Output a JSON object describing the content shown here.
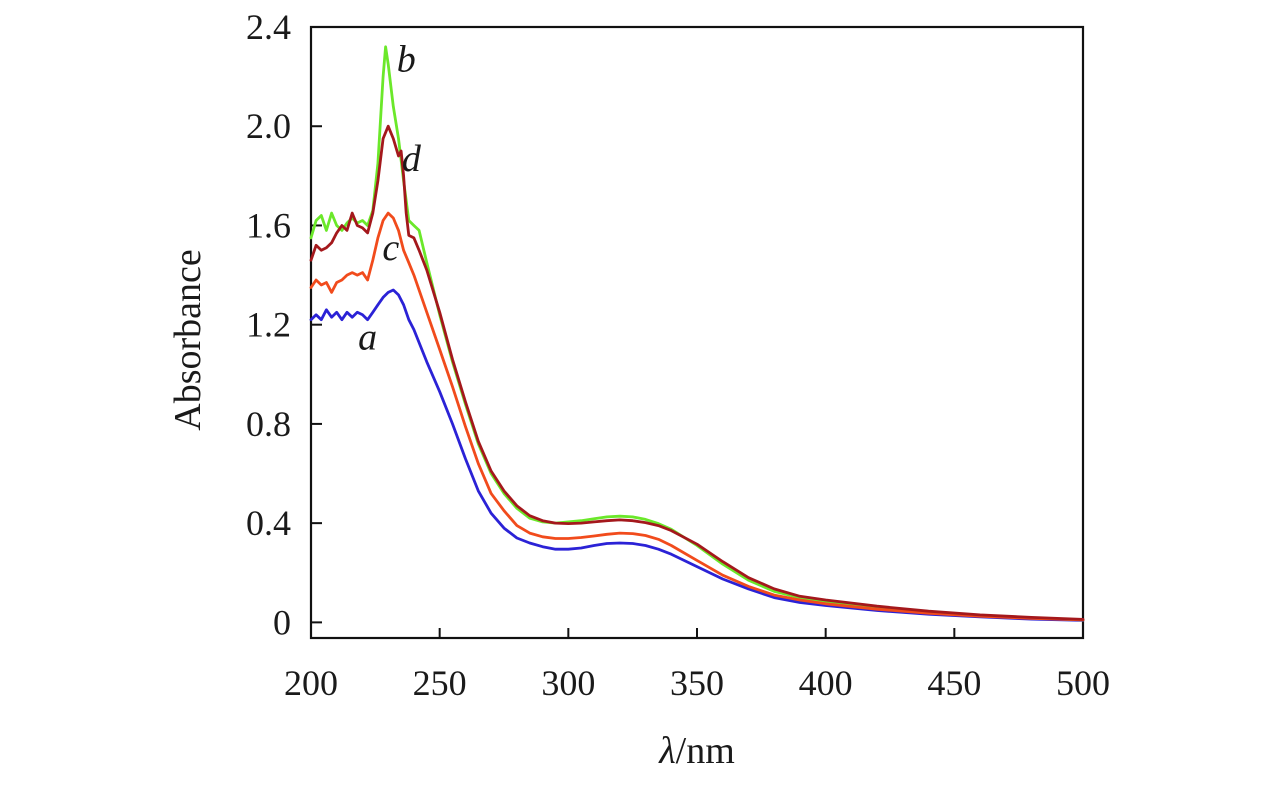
{
  "chart_data": {
    "type": "line",
    "title": "",
    "xlabel_symbol": "λ",
    "xlabel_unit": "/nm",
    "ylabel": "Absorbance",
    "xlim": [
      200,
      500
    ],
    "ylim": [
      -0.063,
      2.4
    ],
    "xticks": [
      200,
      250,
      300,
      350,
      400,
      450,
      500
    ],
    "xtick_labels": [
      "200",
      "250",
      "300",
      "350",
      "400",
      "450",
      "500"
    ],
    "yticks": [
      0,
      0.4,
      0.8,
      1.2,
      1.6,
      2.0,
      2.4
    ],
    "ytick_labels": [
      "0",
      "0.4",
      "0.8",
      "1.2",
      "1.6",
      "2.0",
      "2.4"
    ],
    "grid": false,
    "series": [
      {
        "name": "a",
        "color": "#2b22d6",
        "x": [
          200,
          202,
          204,
          206,
          208,
          210,
          212,
          214,
          216,
          218,
          220,
          222,
          224,
          226,
          228,
          230,
          232,
          234,
          236,
          238,
          240,
          245,
          250,
          255,
          260,
          265,
          270,
          275,
          280,
          285,
          290,
          295,
          300,
          305,
          310,
          315,
          320,
          325,
          330,
          335,
          340,
          350,
          360,
          370,
          380,
          390,
          400,
          420,
          440,
          460,
          480,
          500
        ],
        "y": [
          1.22,
          1.24,
          1.22,
          1.26,
          1.23,
          1.25,
          1.22,
          1.25,
          1.23,
          1.25,
          1.24,
          1.22,
          1.25,
          1.28,
          1.31,
          1.33,
          1.34,
          1.32,
          1.28,
          1.22,
          1.18,
          1.05,
          0.93,
          0.8,
          0.66,
          0.53,
          0.44,
          0.38,
          0.34,
          0.32,
          0.305,
          0.295,
          0.295,
          0.3,
          0.31,
          0.318,
          0.32,
          0.318,
          0.31,
          0.295,
          0.275,
          0.225,
          0.175,
          0.135,
          0.1,
          0.08,
          0.068,
          0.048,
          0.033,
          0.022,
          0.013,
          0.008
        ]
      },
      {
        "name": "b",
        "color": "#6be82a",
        "x": [
          200,
          202,
          204,
          206,
          208,
          210,
          212,
          214,
          216,
          218,
          220,
          222,
          224,
          226,
          228,
          229,
          230,
          232,
          234,
          236,
          238,
          240,
          242,
          245,
          250,
          255,
          260,
          265,
          270,
          275,
          280,
          285,
          290,
          295,
          300,
          305,
          310,
          315,
          320,
          325,
          330,
          335,
          340,
          350,
          360,
          370,
          380,
          390,
          400,
          420,
          440,
          460,
          480,
          500
        ],
        "y": [
          1.55,
          1.62,
          1.64,
          1.58,
          1.65,
          1.6,
          1.58,
          1.61,
          1.63,
          1.61,
          1.62,
          1.6,
          1.66,
          1.85,
          2.2,
          2.32,
          2.25,
          2.08,
          1.95,
          1.78,
          1.62,
          1.6,
          1.58,
          1.45,
          1.24,
          1.05,
          0.88,
          0.72,
          0.6,
          0.52,
          0.46,
          0.42,
          0.405,
          0.4,
          0.405,
          0.41,
          0.418,
          0.425,
          0.428,
          0.425,
          0.415,
          0.398,
          0.375,
          0.31,
          0.235,
          0.17,
          0.125,
          0.1,
          0.085,
          0.06,
          0.04,
          0.028,
          0.018,
          0.01
        ]
      },
      {
        "name": "c",
        "color": "#f14b1c",
        "x": [
          200,
          202,
          204,
          206,
          208,
          210,
          212,
          214,
          216,
          218,
          220,
          222,
          224,
          226,
          228,
          230,
          232,
          234,
          236,
          238,
          240,
          245,
          250,
          255,
          260,
          265,
          270,
          275,
          280,
          285,
          290,
          295,
          300,
          305,
          310,
          315,
          320,
          325,
          330,
          335,
          340,
          350,
          360,
          370,
          380,
          390,
          400,
          420,
          440,
          460,
          480,
          500
        ],
        "y": [
          1.35,
          1.38,
          1.36,
          1.37,
          1.33,
          1.37,
          1.38,
          1.4,
          1.41,
          1.4,
          1.41,
          1.38,
          1.46,
          1.55,
          1.62,
          1.65,
          1.63,
          1.58,
          1.5,
          1.45,
          1.4,
          1.25,
          1.1,
          0.95,
          0.79,
          0.64,
          0.52,
          0.45,
          0.39,
          0.36,
          0.345,
          0.338,
          0.338,
          0.342,
          0.348,
          0.355,
          0.36,
          0.358,
          0.35,
          0.335,
          0.31,
          0.25,
          0.19,
          0.145,
          0.11,
          0.09,
          0.075,
          0.053,
          0.037,
          0.025,
          0.016,
          0.01
        ]
      },
      {
        "name": "d",
        "color": "#a4181c",
        "x": [
          200,
          202,
          204,
          206,
          208,
          210,
          212,
          214,
          216,
          218,
          220,
          222,
          224,
          226,
          228,
          230,
          232,
          234,
          235,
          236,
          237,
          238,
          240,
          242,
          245,
          250,
          255,
          260,
          265,
          270,
          275,
          280,
          285,
          290,
          295,
          300,
          305,
          310,
          315,
          320,
          325,
          330,
          335,
          340,
          350,
          360,
          370,
          380,
          390,
          400,
          420,
          440,
          460,
          480,
          500
        ],
        "y": [
          1.46,
          1.52,
          1.5,
          1.51,
          1.53,
          1.57,
          1.6,
          1.58,
          1.65,
          1.6,
          1.59,
          1.57,
          1.65,
          1.78,
          1.95,
          2.0,
          1.95,
          1.88,
          1.9,
          1.8,
          1.65,
          1.56,
          1.55,
          1.5,
          1.42,
          1.25,
          1.06,
          0.89,
          0.73,
          0.61,
          0.53,
          0.47,
          0.43,
          0.41,
          0.4,
          0.398,
          0.4,
          0.405,
          0.41,
          0.413,
          0.41,
          0.402,
          0.39,
          0.37,
          0.315,
          0.245,
          0.18,
          0.135,
          0.105,
          0.09,
          0.065,
          0.045,
          0.03,
          0.02,
          0.012
        ]
      }
    ],
    "annotations": [
      {
        "text": "a",
        "series": "a",
        "x": 222,
        "y": 1.1
      },
      {
        "text": "b",
        "series": "b",
        "x": 237,
        "y": 2.22
      },
      {
        "text": "c",
        "series": "c",
        "x": 231,
        "y": 1.46
      },
      {
        "text": "d",
        "series": "d",
        "x": 239,
        "y": 1.82
      }
    ]
  }
}
